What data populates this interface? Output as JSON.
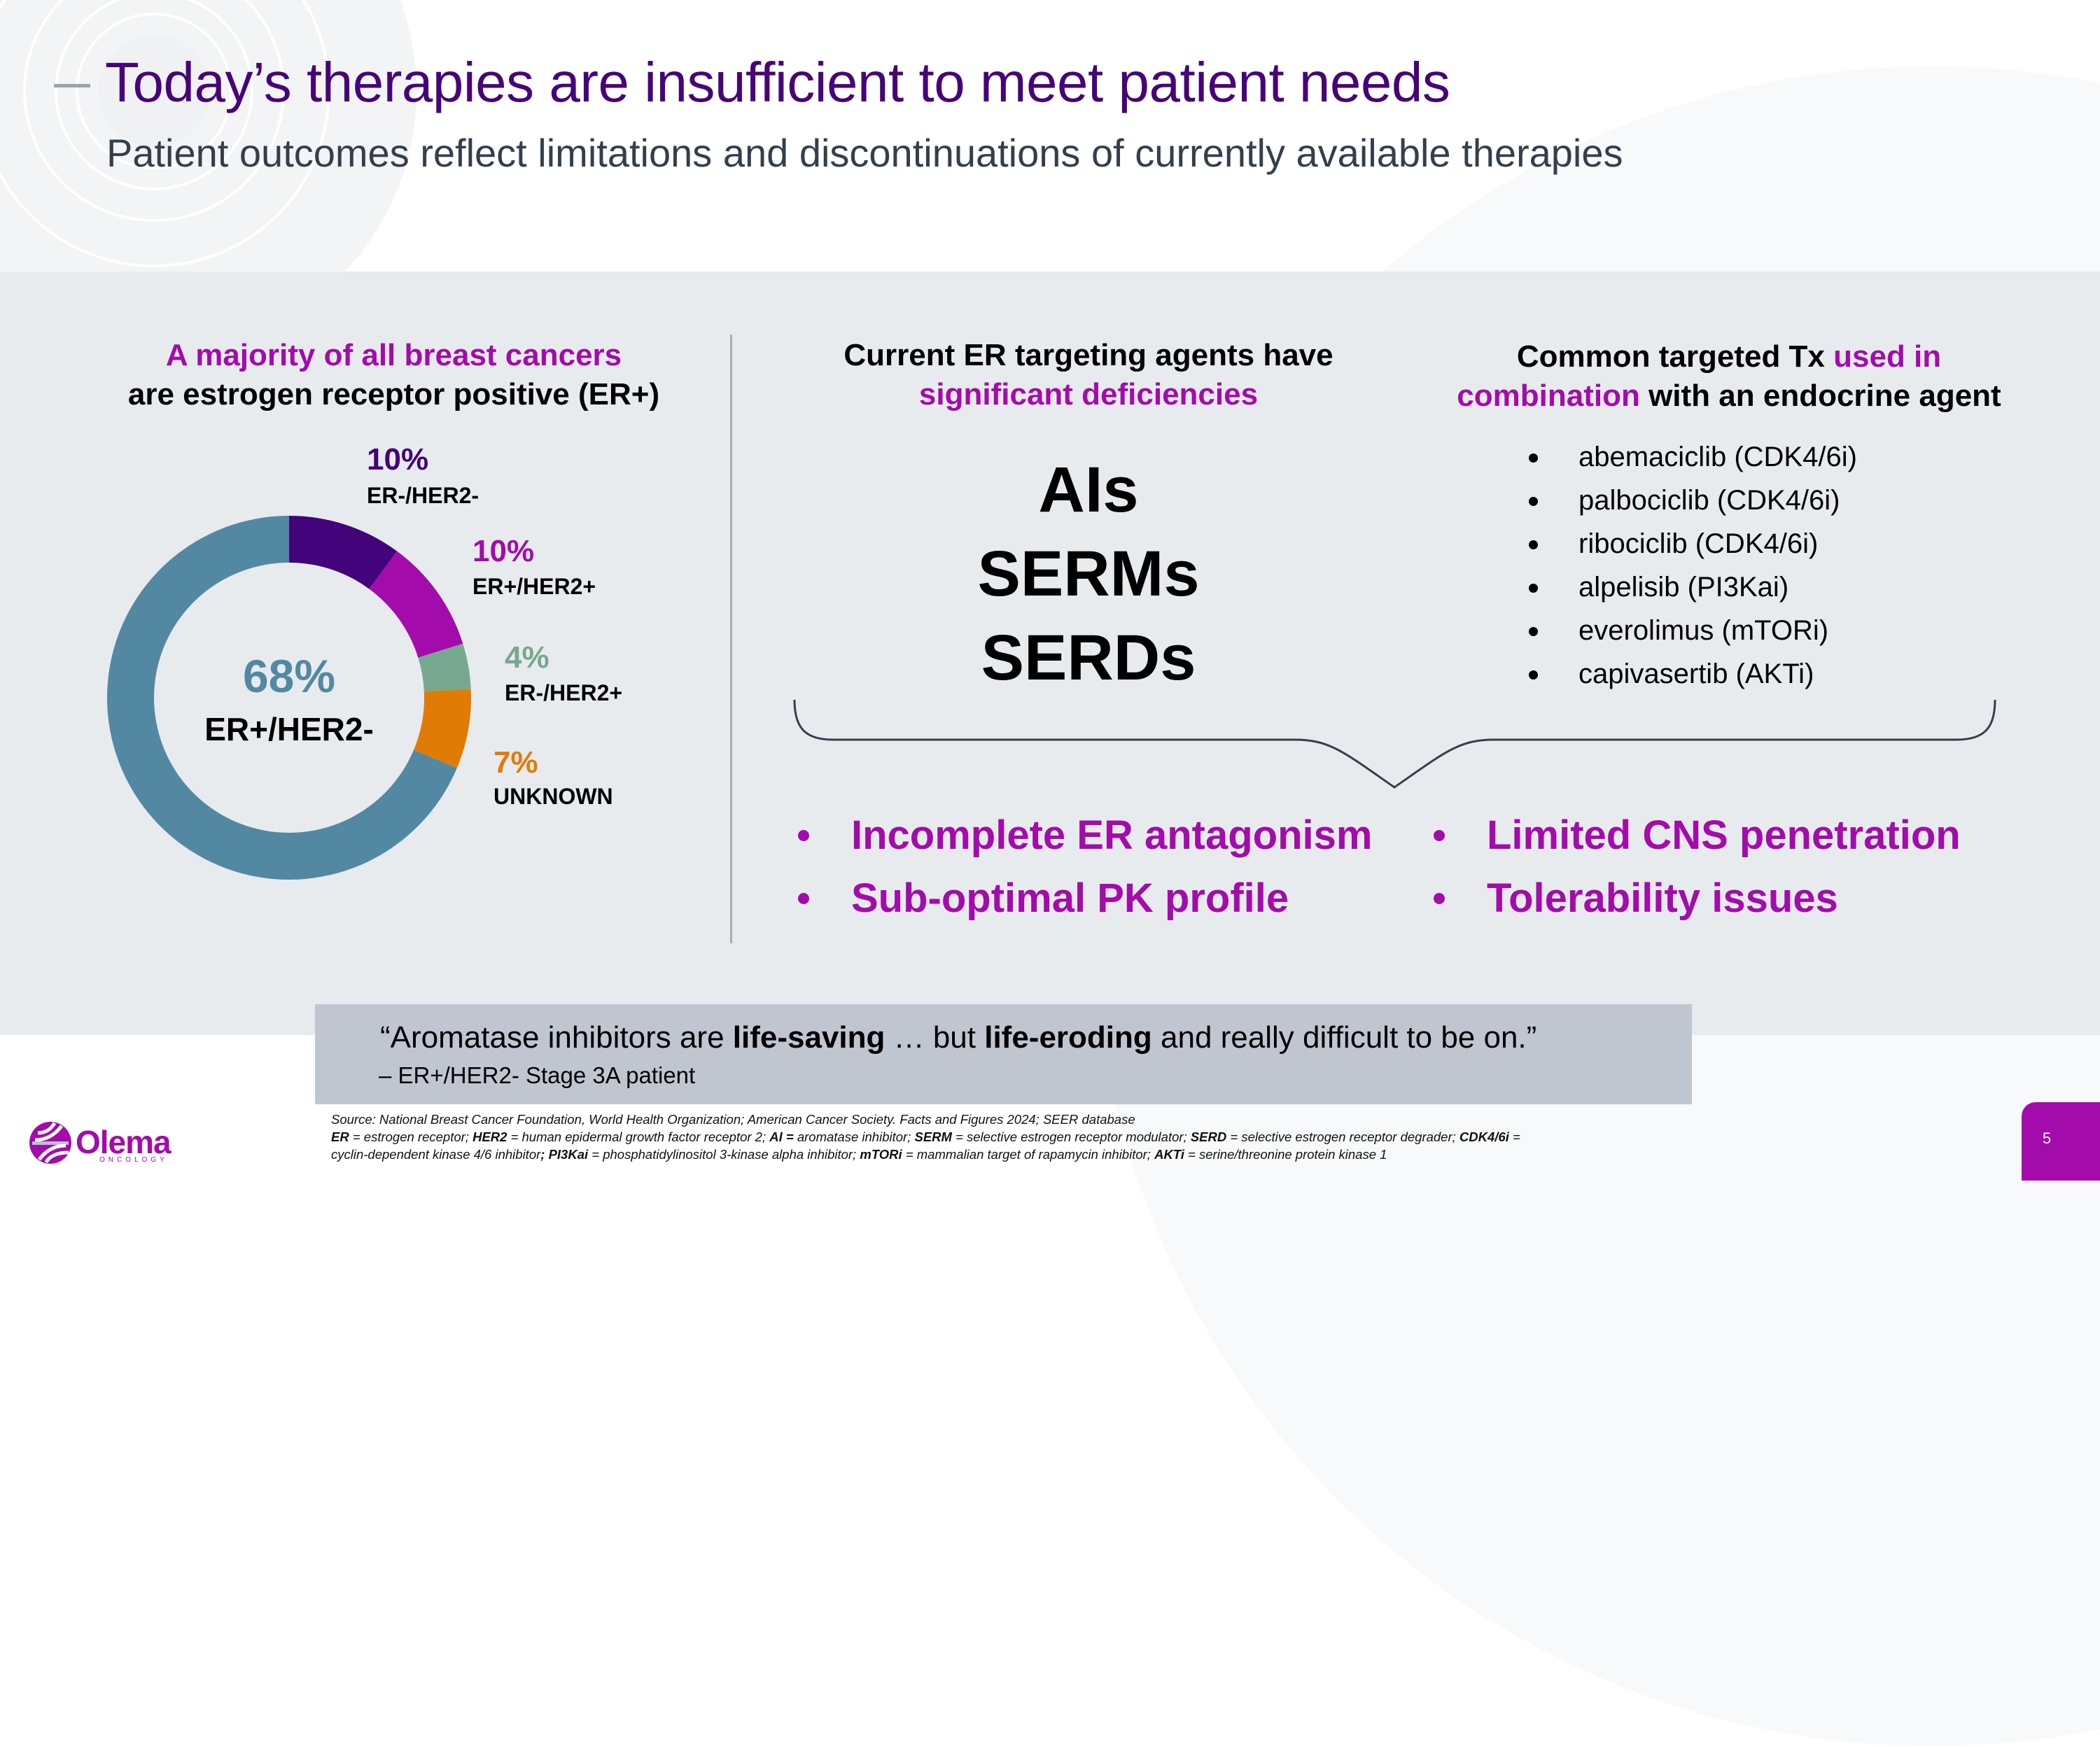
{
  "header": {
    "title": "Today’s therapies are insufficient to meet patient needs",
    "subtitle": "Patient outcomes reflect limitations and discontinuations of currently available therapies"
  },
  "left_column": {
    "heading_line1": "A majority of all breast cancers",
    "heading_line2": "are estrogen receptor positive (ER+)",
    "center_percent": "68%",
    "center_label": "ER+/HER2-",
    "segments": [
      {
        "percent": "10%",
        "label": "ER-/HER2-",
        "color": "#43037a"
      },
      {
        "percent": "10%",
        "label": "ER+/HER2+",
        "color": "#a30bab"
      },
      {
        "percent": "4%",
        "label": "ER-/HER2+",
        "color": "#77a88f"
      },
      {
        "percent": "7%",
        "label": "UNKNOWN",
        "color": "#e07c06"
      }
    ]
  },
  "middle_column": {
    "heading_line1": "Current ER targeting agents have",
    "heading_line2": "significant deficiencies",
    "agents": [
      "AIs",
      "SERMs",
      "SERDs"
    ]
  },
  "right_column": {
    "heading_part1": "Common targeted Tx ",
    "heading_part2": "used in",
    "heading_part3": "combination",
    "heading_part4": " with an endocrine agent",
    "therapies": [
      "abemaciclib (CDK4/6i)",
      "palbociclib (CDK4/6i)",
      "ribociclib (CDK4/6i)",
      "alpelisib (PI3Kai)",
      "everolimus (mTORi)",
      "capivasertib (AKTi)"
    ]
  },
  "deficiencies": [
    "Incomplete ER antagonism",
    "Sub-optimal PK profile",
    "Limited CNS penetration",
    "Tolerability issues"
  ],
  "quote": {
    "part1": "“Aromatase inhibitors are ",
    "bold1": "life-saving",
    "part2": " … but ",
    "bold2": "life-eroding",
    "part3": " and really difficult to be on.”",
    "attribution": "– ER+/HER2- Stage 3A patient"
  },
  "footnotes": {
    "source": "Source: National Breast Cancer Foundation, World Health Organization; American Cancer Society. Facts and Figures 2024; SEER database",
    "abbrev": [
      {
        "term": "ER",
        "def": " = estrogen receptor; "
      },
      {
        "term": "HER2",
        "def": " = human epidermal growth factor receptor 2; "
      },
      {
        "term": "AI =",
        "def": " aromatase inhibitor; "
      },
      {
        "term": "SERM",
        "def": " = selective estrogen receptor modulator; "
      },
      {
        "term": "SERD",
        "def": " = selective estrogen receptor degrader; "
      },
      {
        "term": "CDK4/6i",
        "def": " ="
      }
    ],
    "abbrev_line2": [
      {
        "term": "",
        "def": "cyclin-dependent kinase 4/6 inhibitor"
      },
      {
        "term": "; PI3Kai",
        "def": " = phosphatidylinositol 3-kinase alpha inhibitor;  "
      },
      {
        "term": "mTORi",
        "def": " = mammalian target of rapamycin inhibitor; "
      },
      {
        "term": "AKTi",
        "def": " = serine/threonine protein kinase 1"
      }
    ]
  },
  "logo": {
    "name": "Olema",
    "tagline": "ONCOLOGY"
  },
  "page_number": "5",
  "colors": {
    "title_purple": "#47037a",
    "accent_magenta": "#a30bab",
    "panel_gray": "#e8ebee",
    "quote_gray": "#c0c6d0",
    "er_pos_her2_neg": "#5388a3"
  },
  "chart_data": {
    "type": "pie",
    "variant": "donut",
    "title": "A majority of all breast cancers are estrogen receptor positive (ER+)",
    "categories": [
      "ER+/HER2-",
      "ER-/HER2-",
      "ER+/HER2+",
      "ER-/HER2+",
      "UNKNOWN"
    ],
    "values": [
      68,
      10,
      10,
      4,
      7
    ],
    "colors": [
      "#5388a3",
      "#43037a",
      "#a30bab",
      "#77a88f",
      "#e07c06"
    ],
    "unit": "%"
  }
}
